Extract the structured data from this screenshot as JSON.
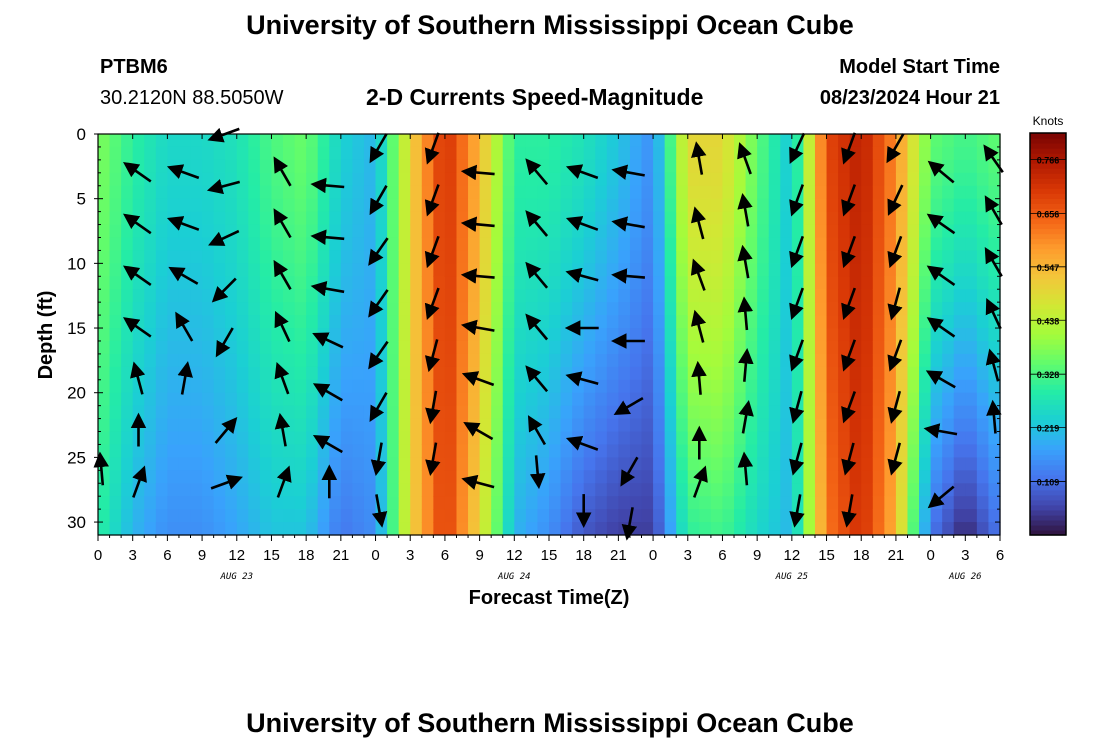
{
  "page": {
    "title_top": "University of Southern Mississippi Ocean Cube",
    "title_bottom": "University of Southern Mississippi Ocean Cube"
  },
  "header": {
    "station": "PTBM6",
    "coords": "30.2120N  88.5050W",
    "plot_title": "2-D Currents Speed-Magnitude",
    "model_label": "Model Start Time",
    "model_time": "08/23/2024 Hour 21"
  },
  "chart_data": {
    "type": "heatmap",
    "title": "2-D Currents Speed-Magnitude",
    "xlabel": "Forecast Time(Z)",
    "ylabel": "Depth (ft)",
    "x_range_hours": [
      0,
      78
    ],
    "y_range_ft": [
      0,
      31
    ],
    "x_tick_labels": [
      "0",
      "3",
      "6",
      "9",
      "12",
      "15",
      "18",
      "21",
      "0",
      "3",
      "6",
      "9",
      "12",
      "15",
      "18",
      "21",
      "0",
      "3",
      "6",
      "9",
      "12",
      "15",
      "18",
      "21",
      "0",
      "3",
      "6"
    ],
    "y_ticks": [
      0,
      5,
      10,
      15,
      20,
      25,
      30
    ],
    "day_labels": [
      {
        "hour": 12,
        "label": "AUG 23"
      },
      {
        "hour": 36,
        "label": "AUG 24"
      },
      {
        "hour": 60,
        "label": "AUG 25"
      },
      {
        "hour": 75,
        "label": "AUG 26"
      }
    ],
    "colorbar": {
      "unit": "Knots",
      "min": 0.0,
      "max": 0.82,
      "tick_labels": [
        "0.766",
        "0.656",
        "0.547",
        "0.438",
        "0.328",
        "0.219",
        "0.109"
      ],
      "tick_values": [
        0.766,
        0.656,
        0.547,
        0.438,
        0.328,
        0.219,
        0.109
      ],
      "palette": [
        "#30123b",
        "#4145ab",
        "#4675ed",
        "#39a2fc",
        "#1bcfd4",
        "#24eca6",
        "#61fc6c",
        "#a4fc3b",
        "#d1e834",
        "#f3c63a",
        "#fe9b2d",
        "#f36315",
        "#d93806",
        "#b11901",
        "#7a0403"
      ]
    },
    "surface_speed_knots": [
      {
        "hour": 0,
        "value": 0.38
      },
      {
        "hour": 3,
        "value": 0.3
      },
      {
        "hour": 6,
        "value": 0.25
      },
      {
        "hour": 9,
        "value": 0.25
      },
      {
        "hour": 12,
        "value": 0.27
      },
      {
        "hour": 15,
        "value": 0.33
      },
      {
        "hour": 18,
        "value": 0.36
      },
      {
        "hour": 21,
        "value": 0.24
      },
      {
        "hour": 24,
        "value": 0.2
      },
      {
        "hour": 27,
        "value": 0.5
      },
      {
        "hour": 30,
        "value": 0.72
      },
      {
        "hour": 33,
        "value": 0.55
      },
      {
        "hour": 36,
        "value": 0.3
      },
      {
        "hour": 39,
        "value": 0.3
      },
      {
        "hour": 42,
        "value": 0.27
      },
      {
        "hour": 45,
        "value": 0.22
      },
      {
        "hour": 48,
        "value": 0.15
      },
      {
        "hour": 51,
        "value": 0.5
      },
      {
        "hour": 54,
        "value": 0.5
      },
      {
        "hour": 57,
        "value": 0.35
      },
      {
        "hour": 60,
        "value": 0.22
      },
      {
        "hour": 63,
        "value": 0.68
      },
      {
        "hour": 66,
        "value": 0.75
      },
      {
        "hour": 69,
        "value": 0.6
      },
      {
        "hour": 72,
        "value": 0.35
      },
      {
        "hour": 75,
        "value": 0.32
      },
      {
        "hour": 78,
        "value": 0.35
      }
    ],
    "bottom_speed_knots": [
      {
        "hour": 0,
        "value": 0.3
      },
      {
        "hour": 3,
        "value": 0.2
      },
      {
        "hour": 6,
        "value": 0.15
      },
      {
        "hour": 9,
        "value": 0.15
      },
      {
        "hour": 12,
        "value": 0.18
      },
      {
        "hour": 15,
        "value": 0.22
      },
      {
        "hour": 18,
        "value": 0.22
      },
      {
        "hour": 21,
        "value": 0.12
      },
      {
        "hour": 24,
        "value": 0.15
      },
      {
        "hour": 27,
        "value": 0.5
      },
      {
        "hour": 30,
        "value": 0.7
      },
      {
        "hour": 33,
        "value": 0.5
      },
      {
        "hour": 36,
        "value": 0.2
      },
      {
        "hour": 39,
        "value": 0.15
      },
      {
        "hour": 42,
        "value": 0.08
      },
      {
        "hour": 45,
        "value": 0.05
      },
      {
        "hour": 48,
        "value": 0.05
      },
      {
        "hour": 51,
        "value": 0.3
      },
      {
        "hour": 54,
        "value": 0.32
      },
      {
        "hour": 57,
        "value": 0.25
      },
      {
        "hour": 60,
        "value": 0.2
      },
      {
        "hour": 63,
        "value": 0.62
      },
      {
        "hour": 66,
        "value": 0.72
      },
      {
        "hour": 69,
        "value": 0.55
      },
      {
        "hour": 72,
        "value": 0.12
      },
      {
        "hour": 75,
        "value": 0.02
      },
      {
        "hour": 78,
        "value": 0.12
      }
    ],
    "vector_columns": [
      {
        "hour": 0.3,
        "depths": [
          26
        ],
        "dirs": [
          355
        ]
      },
      {
        "hour": 3.5,
        "depths": [
          3,
          7,
          11,
          15,
          19,
          23,
          27
        ],
        "dirs": [
          305,
          305,
          305,
          305,
          345,
          0,
          20
        ]
      },
      {
        "hour": 7.5,
        "depths": [
          3,
          7,
          11,
          15,
          19
        ],
        "dirs": [
          290,
          290,
          300,
          330,
          10
        ]
      },
      {
        "hour": 11,
        "depths": [
          0,
          4,
          8,
          12,
          16,
          23,
          27
        ],
        "dirs": [
          250,
          255,
          245,
          225,
          210,
          40,
          70
        ]
      },
      {
        "hour": 16,
        "depths": [
          3,
          7,
          11,
          15,
          19,
          23,
          27
        ],
        "dirs": [
          330,
          330,
          330,
          335,
          340,
          350,
          20
        ]
      },
      {
        "hour": 20,
        "depths": [
          4,
          8,
          12,
          16,
          20,
          24,
          27
        ],
        "dirs": [
          275,
          275,
          280,
          295,
          300,
          300,
          0
        ]
      },
      {
        "hour": 24.3,
        "depths": [
          1,
          5,
          9,
          13,
          17,
          21,
          25,
          29
        ],
        "dirs": [
          210,
          210,
          215,
          215,
          215,
          210,
          190,
          170
        ]
      },
      {
        "hour": 29,
        "depths": [
          1,
          5,
          9,
          13,
          17,
          21,
          25
        ],
        "dirs": [
          200,
          200,
          200,
          200,
          195,
          190,
          190
        ]
      },
      {
        "hour": 33,
        "depths": [
          3,
          7,
          11,
          15,
          19,
          23,
          27
        ],
        "dirs": [
          275,
          275,
          275,
          280,
          290,
          300,
          285
        ]
      },
      {
        "hour": 38,
        "depths": [
          3,
          7,
          11,
          15,
          19,
          23,
          26
        ],
        "dirs": [
          320,
          320,
          320,
          320,
          320,
          330,
          175
        ]
      },
      {
        "hour": 42,
        "depths": [
          3,
          7,
          11,
          15,
          19,
          24,
          29
        ],
        "dirs": [
          290,
          290,
          285,
          270,
          285,
          290,
          180
        ]
      },
      {
        "hour": 46,
        "depths": [
          3,
          7,
          11,
          16,
          21,
          26,
          30
        ],
        "dirs": [
          280,
          280,
          275,
          270,
          240,
          210,
          190
        ]
      },
      {
        "hour": 52,
        "depths": [
          2,
          7,
          11,
          15,
          19,
          24,
          27
        ],
        "dirs": [
          350,
          345,
          340,
          345,
          355,
          0,
          20
        ]
      },
      {
        "hour": 56,
        "depths": [
          2,
          6,
          10,
          14,
          18,
          22,
          26
        ],
        "dirs": [
          340,
          350,
          350,
          355,
          5,
          10,
          355
        ]
      },
      {
        "hour": 60.5,
        "depths": [
          1,
          5,
          9,
          13,
          17,
          21,
          25,
          29
        ],
        "dirs": [
          205,
          200,
          200,
          200,
          200,
          195,
          195,
          190
        ]
      },
      {
        "hour": 65,
        "depths": [
          1,
          5,
          9,
          13,
          17,
          21,
          25,
          29
        ],
        "dirs": [
          200,
          200,
          200,
          200,
          200,
          200,
          195,
          190
        ]
      },
      {
        "hour": 69,
        "depths": [
          1,
          5,
          9,
          13,
          17,
          21,
          25
        ],
        "dirs": [
          210,
          205,
          200,
          195,
          200,
          195,
          195
        ]
      },
      {
        "hour": 73,
        "depths": [
          3,
          7,
          11,
          15,
          19,
          23,
          28
        ],
        "dirs": [
          310,
          305,
          305,
          305,
          300,
          280,
          230
        ]
      },
      {
        "hour": 77.5,
        "depths": [
          2,
          6,
          10,
          14,
          18,
          22
        ],
        "dirs": [
          325,
          330,
          330,
          335,
          345,
          355
        ]
      }
    ]
  }
}
